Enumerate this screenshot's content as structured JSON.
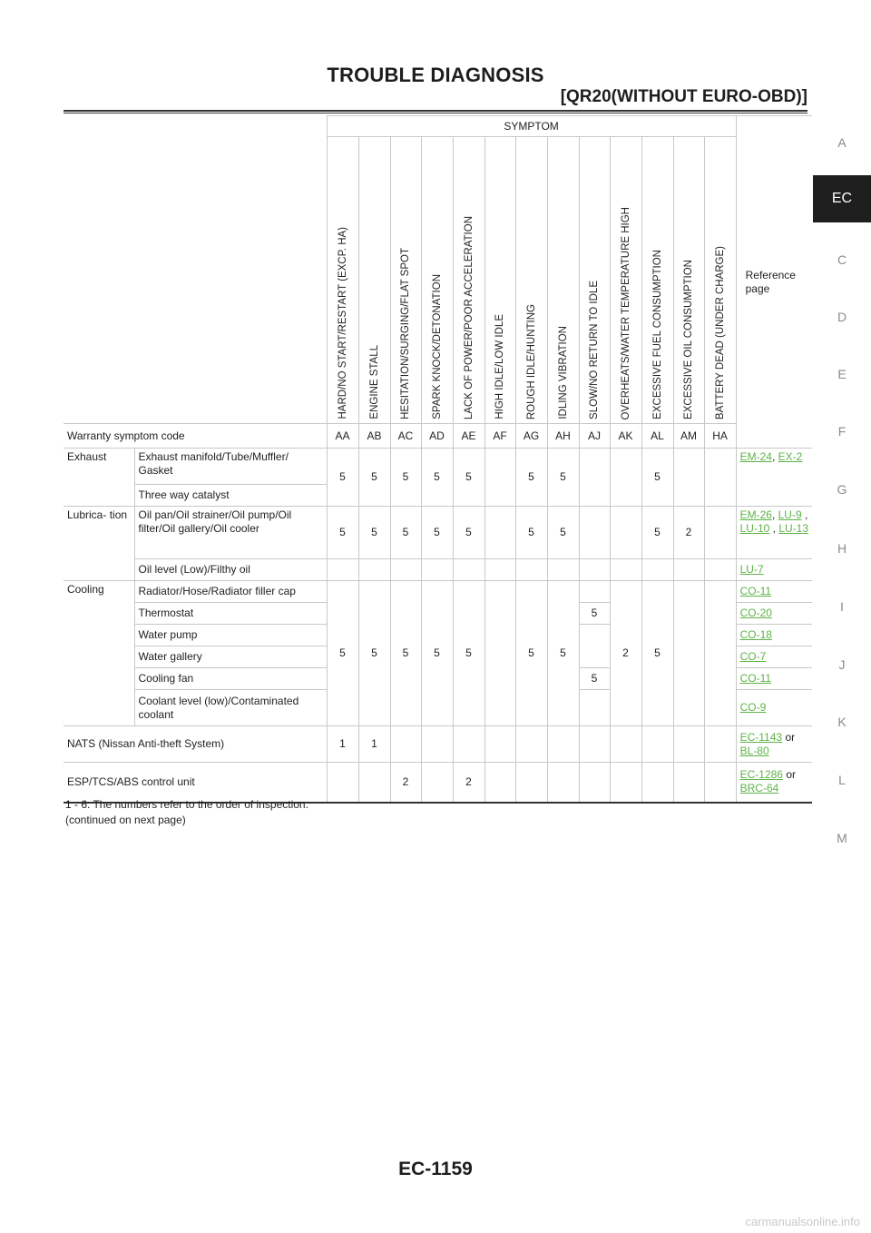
{
  "header": {
    "title": "TROUBLE DIAGNOSIS",
    "subtitle": "[QR20(WITHOUT EURO-OBD)]"
  },
  "sidebar": {
    "letters": [
      "A",
      "EC",
      "C",
      "D",
      "E",
      "F",
      "G",
      "H",
      "I",
      "J",
      "K",
      "L",
      "M"
    ],
    "active": "EC"
  },
  "table": {
    "symptom_header": "SYMPTOM",
    "reference_header": "Reference page",
    "symptoms": [
      "HARD/NO START/RESTART (EXCP. HA)",
      "ENGINE STALL",
      "HESITATION/SURGING/FLAT SPOT",
      "SPARK KNOCK/DETONATION",
      "LACK OF POWER/POOR ACCELERATION",
      "HIGH IDLE/LOW IDLE",
      "ROUGH IDLE/HUNTING",
      "IDLING VIBRATION",
      "SLOW/NO RETURN TO IDLE",
      "OVERHEATS/WATER TEMPERATURE HIGH",
      "EXCESSIVE FUEL CONSUMPTION",
      "EXCESSIVE OIL CONSUMPTION",
      "BATTERY DEAD (UNDER CHARGE)"
    ],
    "warranty_label": "Warranty symptom code",
    "warranty_codes": [
      "AA",
      "AB",
      "AC",
      "AD",
      "AE",
      "AF",
      "AG",
      "AH",
      "AJ",
      "AK",
      "AL",
      "AM",
      "HA"
    ],
    "exhaust": {
      "category": "Exhaust",
      "items": [
        "Exhaust manifold/Tube/Muffler/ Gasket",
        "Three way catalyst"
      ],
      "values": [
        "5",
        "5",
        "5",
        "5",
        "5",
        "",
        "5",
        "5",
        "",
        "",
        "5",
        "",
        ""
      ],
      "refs": [
        "EM-24",
        "EX-2"
      ]
    },
    "lubrication": {
      "category": "Lubrica- tion",
      "items": [
        "Oil pan/Oil strainer/Oil pump/Oil filter/Oil gallery/Oil cooler",
        "Oil level (Low)/Filthy oil"
      ],
      "values": [
        "5",
        "5",
        "5",
        "5",
        "5",
        "",
        "5",
        "5",
        "",
        "",
        "5",
        "2",
        ""
      ],
      "refs1": [
        "EM-26",
        "LU-9",
        "LU-10",
        "LU-13"
      ],
      "ref2": "LU-7"
    },
    "cooling": {
      "category": "Cooling",
      "items": [
        "Radiator/Hose/Radiator filler cap",
        "Thermostat",
        "Water pump",
        "Water gallery",
        "Cooling fan",
        "Coolant level (low)/Contaminated coolant"
      ],
      "values": [
        "5",
        "5",
        "5",
        "5",
        "5",
        "",
        "5",
        "5",
        "",
        "2",
        "5",
        "",
        ""
      ],
      "return_to_idle": [
        "",
        "5",
        "",
        "",
        "5",
        ""
      ],
      "refs": [
        "CO-11",
        "CO-20",
        "CO-18",
        "CO-7",
        "CO-11",
        "CO-9"
      ]
    },
    "nats": {
      "label": "NATS (Nissan Anti-theft System)",
      "values": [
        "1",
        "1",
        "",
        "",
        "",
        "",
        "",
        "",
        "",
        "",
        "",
        "",
        ""
      ],
      "refs": [
        "EC-1143",
        "BL-80"
      ],
      "conj": "or"
    },
    "esp": {
      "label": "ESP/TCS/ABS control unit",
      "values": [
        "",
        "",
        "2",
        "",
        "2",
        "",
        "",
        "",
        "",
        "",
        "",
        "",
        ""
      ],
      "refs": [
        "EC-1286",
        "BRC-64"
      ],
      "conj": "or"
    }
  },
  "notes": [
    "1 - 6: The numbers refer to the order of inspection.",
    "(continued on next page)"
  ],
  "footer": {
    "page": "EC-1159"
  },
  "watermark": "carmanualsonline.info"
}
